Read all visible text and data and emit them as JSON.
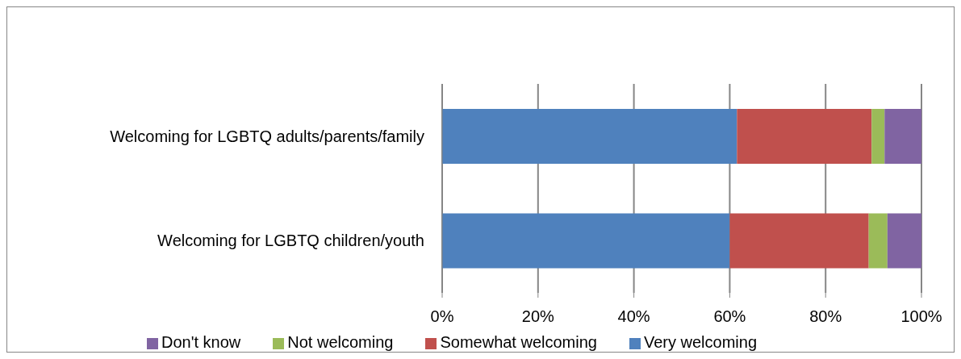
{
  "chart_data": {
    "type": "bar",
    "orientation": "horizontal",
    "stacked": true,
    "categories": [
      "Welcoming for LGBTQ adults/parents/family",
      "Welcoming for LGBTQ children/youth"
    ],
    "series": [
      {
        "name": "Very welcoming",
        "color": "#4f81bd",
        "values": [
          61.5,
          60
        ]
      },
      {
        "name": "Somewhat welcoming",
        "color": "#c0504d",
        "values": [
          28.1,
          29
        ]
      },
      {
        "name": "Not welcoming",
        "color": "#9bbb59",
        "values": [
          2.7,
          3.9
        ]
      },
      {
        "name": "Don't know",
        "color": "#8064a2",
        "values": [
          7.7,
          7.1
        ]
      }
    ],
    "xlim": [
      0,
      100
    ],
    "xticks": [
      {
        "value": 0,
        "label": "0%"
      },
      {
        "value": 20,
        "label": "20%"
      },
      {
        "value": 40,
        "label": "40%"
      },
      {
        "value": 60,
        "label": "60%"
      },
      {
        "value": 80,
        "label": "80%"
      },
      {
        "value": 100,
        "label": "100%"
      }
    ],
    "grid": "x",
    "legend": "bottom"
  }
}
